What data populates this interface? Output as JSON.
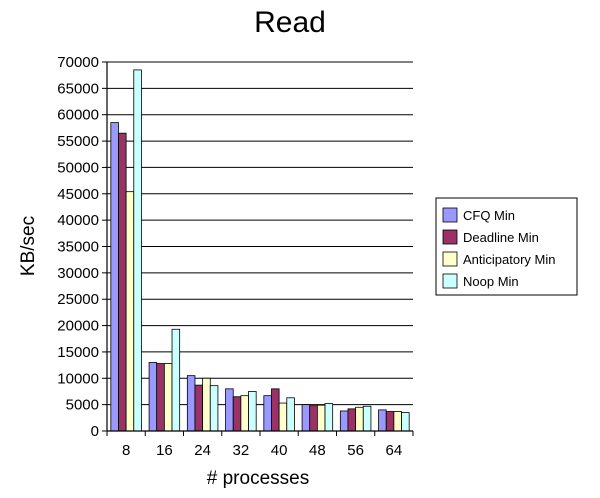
{
  "chart_data": {
    "type": "bar",
    "title": "Read",
    "xlabel": "# processes",
    "ylabel": "KB/sec",
    "categories": [
      "8",
      "16",
      "24",
      "32",
      "40",
      "48",
      "56",
      "64"
    ],
    "ylim": [
      0,
      70000
    ],
    "ytick_step": 5000,
    "grid": true,
    "legend_position": "right",
    "series": [
      {
        "name": "CFQ Min",
        "color": "#9999ff",
        "values": [
          58500,
          13000,
          10500,
          8000,
          6700,
          5000,
          3800,
          4000
        ]
      },
      {
        "name": "Deadline Min",
        "color": "#993366",
        "values": [
          56500,
          12800,
          8700,
          6500,
          8000,
          4800,
          4200,
          3700
        ]
      },
      {
        "name": "Anticipatory Min",
        "color": "#ffffcc",
        "values": [
          45400,
          12800,
          10000,
          6700,
          5300,
          4900,
          4500,
          3700
        ]
      },
      {
        "name": "Noop Min",
        "color": "#ccffff",
        "values": [
          68500,
          19300,
          8600,
          7500,
          6300,
          5200,
          4700,
          3500
        ]
      }
    ]
  }
}
